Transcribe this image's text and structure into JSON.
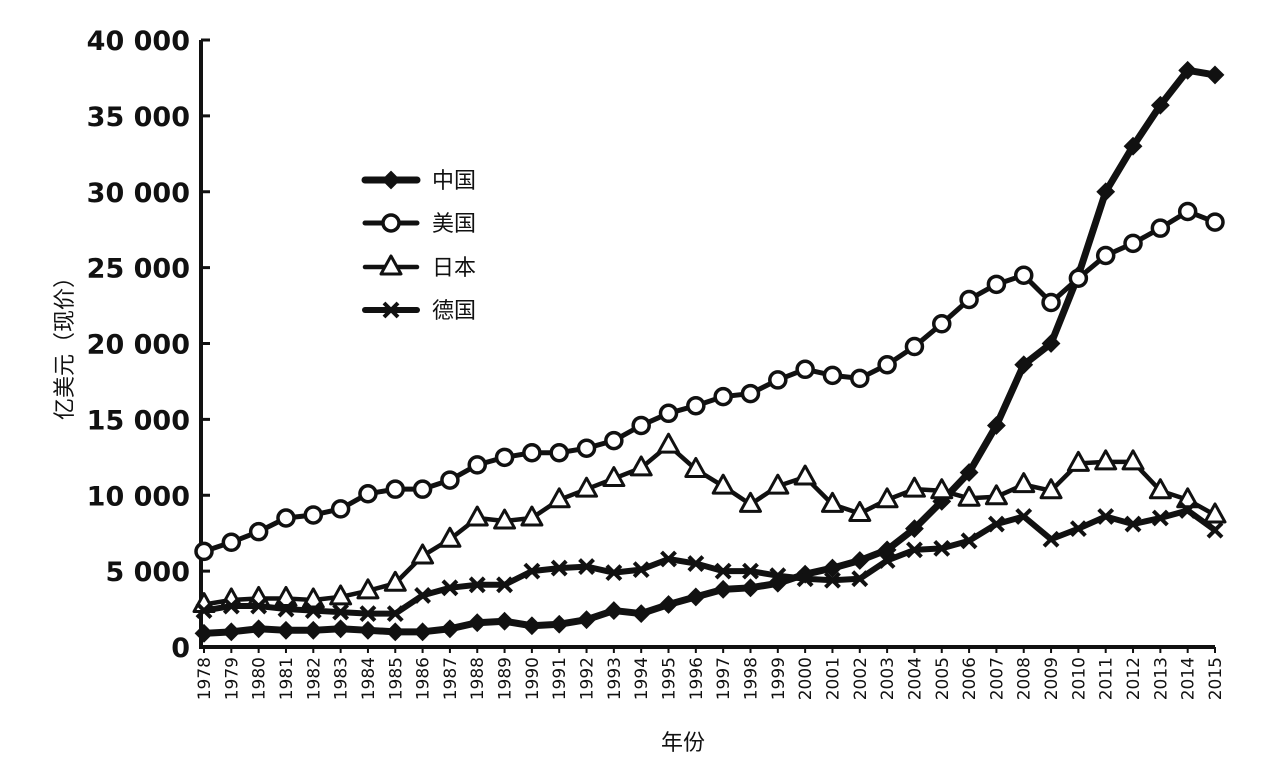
{
  "chart_data": {
    "type": "line",
    "ylabel": "亿美元（现价）",
    "xlabel": "年份",
    "ylim": [
      0,
      40000
    ],
    "y_tick_labels": [
      "0",
      "5 000",
      "10 000",
      "15 000",
      "20 000",
      "25 000",
      "30 000",
      "35 000",
      "40 000"
    ],
    "x": [
      "1978",
      "1979",
      "1980",
      "1981",
      "1982",
      "1983",
      "1984",
      "1985",
      "1986",
      "1987",
      "1988",
      "1989",
      "1990",
      "1991",
      "1992",
      "1993",
      "1994",
      "1995",
      "1996",
      "1997",
      "1998",
      "1999",
      "2000",
      "2001",
      "2002",
      "2003",
      "2004",
      "2005",
      "2006",
      "2007",
      "2008",
      "2009",
      "2010",
      "2011",
      "2012",
      "2013",
      "2014",
      "2015"
    ],
    "x_tick_labels": [
      "1978",
      "1979",
      "1980",
      "1981",
      "1982",
      "1983",
      "1984",
      "1985",
      "1986",
      "1987",
      "1988",
      "1989",
      "1990",
      "1991",
      "1992",
      "1993",
      "1994",
      "1995",
      "1996",
      "1997",
      "1998",
      "1999",
      "2000",
      "2001",
      "2002",
      "2003",
      "2004",
      "2005",
      "2006",
      "2007",
      "2008",
      "2009",
      "2010",
      "2011",
      "2012",
      "2013",
      "2014",
      "2015"
    ],
    "legend_position": "upper-left",
    "series": [
      {
        "name": "中国",
        "marker": "diamond",
        "values": [
          900,
          1000,
          1200,
          1100,
          1100,
          1200,
          1100,
          1000,
          1000,
          1200,
          1600,
          1700,
          1400,
          1500,
          1800,
          2400,
          2200,
          2800,
          3300,
          3800,
          3900,
          4200,
          4800,
          5200,
          5700,
          6400,
          7800,
          9600,
          11500,
          14600,
          18600,
          20000,
          24500,
          30000,
          33000,
          35700,
          38000,
          37700
        ]
      },
      {
        "name": "美国",
        "marker": "circle",
        "values": [
          6300,
          6900,
          7600,
          8500,
          8700,
          9100,
          10100,
          10400,
          10400,
          11000,
          12000,
          12500,
          12800,
          12800,
          13100,
          13600,
          14600,
          15400,
          15900,
          16500,
          16700,
          17600,
          18300,
          17900,
          17700,
          18600,
          19800,
          21300,
          22900,
          23900,
          24500,
          22700,
          24300,
          25800,
          26600,
          27600,
          28700,
          28000
        ]
      },
      {
        "name": "日本",
        "marker": "triangle",
        "values": [
          2800,
          3100,
          3200,
          3200,
          3100,
          3300,
          3700,
          4200,
          6000,
          7100,
          8500,
          8300,
          8500,
          9700,
          10400,
          11100,
          11800,
          13300,
          11700,
          10600,
          9400,
          10600,
          11200,
          9400,
          8800,
          9700,
          10400,
          10300,
          9800,
          9900,
          10700,
          10300,
          12100,
          12200,
          12200,
          10300,
          9700,
          8700
        ]
      },
      {
        "name": "德国",
        "marker": "cross",
        "values": [
          2400,
          2700,
          2700,
          2500,
          2400,
          2300,
          2200,
          2200,
          3400,
          3900,
          4100,
          4100,
          5000,
          5200,
          5300,
          4900,
          5100,
          5800,
          5500,
          5000,
          5000,
          4700,
          4500,
          4400,
          4500,
          5700,
          6400,
          6500,
          7000,
          8100,
          8600,
          7100,
          7800,
          8600,
          8100,
          8500,
          9000,
          7700
        ]
      }
    ]
  }
}
